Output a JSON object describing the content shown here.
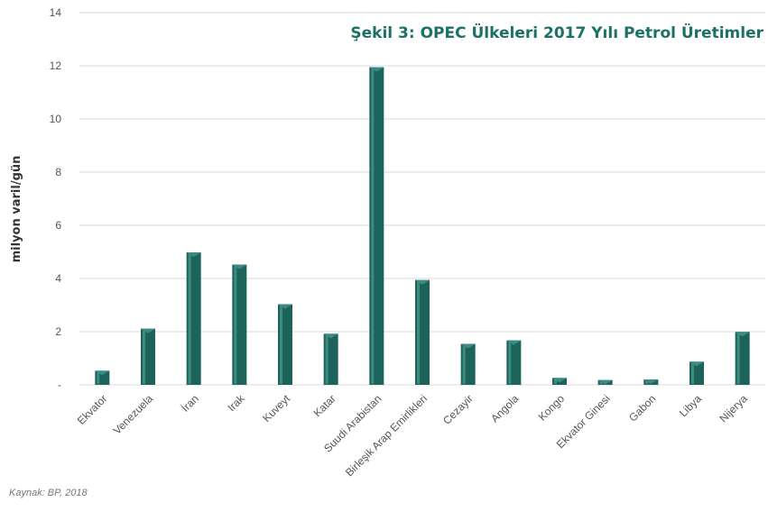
{
  "colors": {
    "bar": "#1b635b",
    "bar_highlight": "#3d8a80",
    "title": "#1c7066",
    "grid": "#d9d9d9"
  },
  "source": "Kaynak: BP, 2018",
  "chart_data": {
    "type": "bar",
    "title": "Şekil 3: OPEC Ülkeleri 2017 Yılı Petrol Üretimler",
    "ylabel": "milyon varil/gün",
    "xlabel": "",
    "ylim": [
      0,
      14
    ],
    "yticks": [
      0,
      2,
      4,
      6,
      8,
      10,
      12,
      14
    ],
    "ytick_labels": [
      "-",
      "2",
      "4",
      "6",
      "8",
      "10",
      "12",
      "14"
    ],
    "grid": true,
    "categories": [
      "Ekvator",
      "Venezuela",
      "İran",
      "Irak",
      "Kuveyt",
      "Katar",
      "Suudi Arabistan",
      "Birleşik Arap Emirlikleri",
      "Cezayir",
      "Angola",
      "Kongo",
      "Ekvator Ginesi",
      "Gabon",
      "Libya",
      "Nijerya"
    ],
    "values": [
      0.53,
      2.11,
      4.98,
      4.52,
      3.03,
      1.92,
      11.95,
      3.94,
      1.54,
      1.67,
      0.26,
      0.18,
      0.2,
      0.87,
      1.99
    ]
  }
}
